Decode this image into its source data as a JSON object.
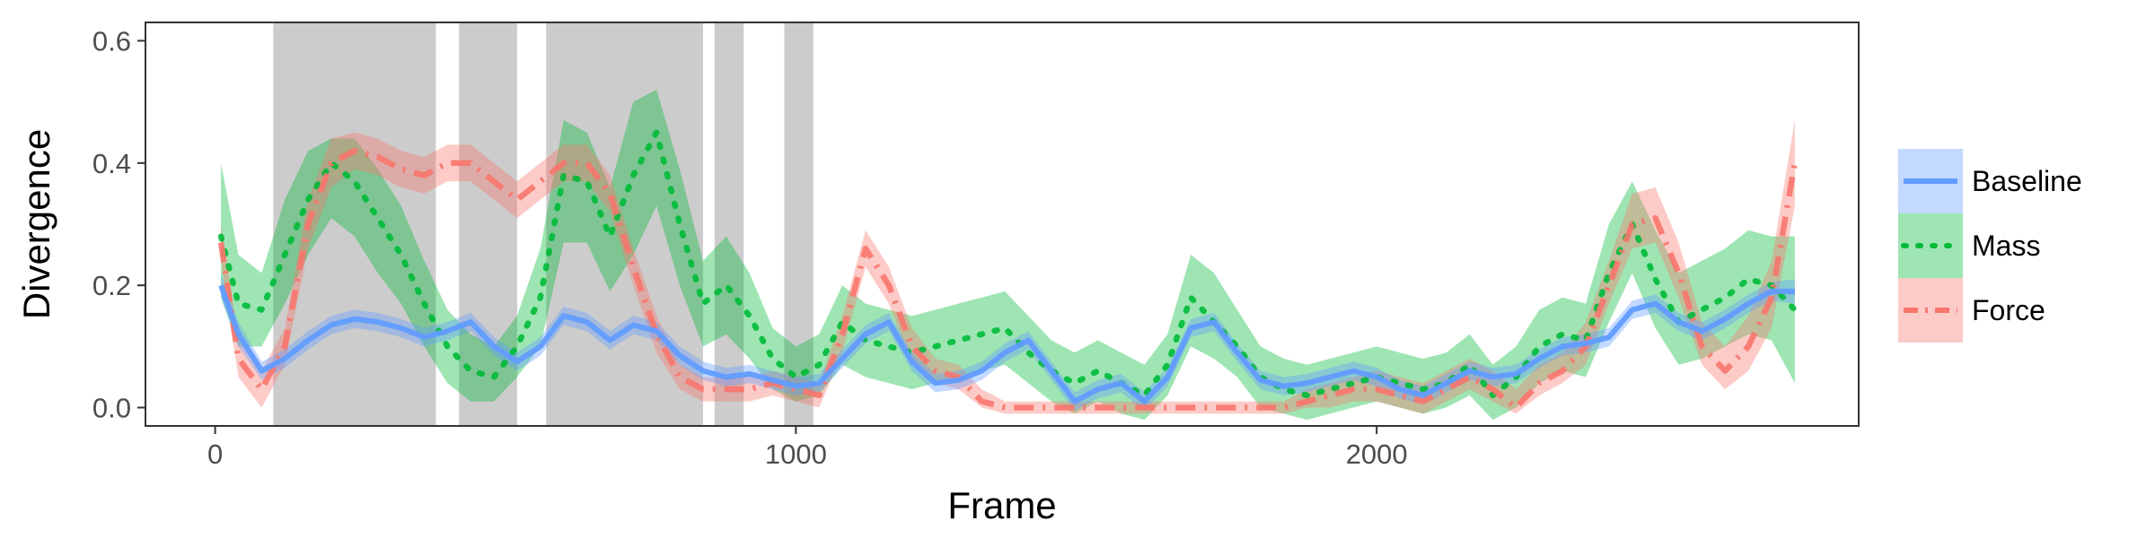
{
  "chart_data": {
    "type": "line",
    "title": "",
    "xlabel": "Frame",
    "ylabel": "Divergence",
    "xlim": [
      -120,
      2830
    ],
    "ylim": [
      -0.03,
      0.63
    ],
    "x_ticks": [
      0,
      1000,
      2000
    ],
    "x_tick_labels": [
      "0",
      "1000",
      "2000"
    ],
    "y_ticks": [
      0.0,
      0.2,
      0.4,
      0.6
    ],
    "y_tick_labels": [
      "0.0",
      "0.2",
      "0.4",
      "0.6"
    ],
    "grid": false,
    "legend_position": "right",
    "shaded_regions": [
      [
        100,
        380
      ],
      [
        420,
        520
      ],
      [
        570,
        840
      ],
      [
        860,
        910
      ],
      [
        980,
        1030
      ]
    ],
    "shaded_color": "#cccccc",
    "series": [
      {
        "name": "Baseline",
        "color": "#619CFF",
        "style": "solid",
        "x": [
          10,
          40,
          80,
          120,
          160,
          200,
          240,
          280,
          320,
          360,
          400,
          440,
          480,
          520,
          560,
          600,
          640,
          680,
          720,
          760,
          800,
          840,
          880,
          920,
          960,
          1000,
          1040,
          1080,
          1120,
          1160,
          1200,
          1240,
          1280,
          1320,
          1360,
          1400,
          1440,
          1480,
          1520,
          1560,
          1600,
          1640,
          1680,
          1720,
          1760,
          1800,
          1840,
          1880,
          1920,
          1960,
          2000,
          2040,
          2080,
          2120,
          2160,
          2200,
          2240,
          2280,
          2320,
          2360,
          2400,
          2440,
          2480,
          2520,
          2560,
          2600,
          2640,
          2680,
          2720
        ],
        "y": [
          0.2,
          0.12,
          0.06,
          0.08,
          0.11,
          0.135,
          0.145,
          0.14,
          0.13,
          0.115,
          0.125,
          0.14,
          0.1,
          0.075,
          0.1,
          0.15,
          0.14,
          0.11,
          0.135,
          0.125,
          0.085,
          0.06,
          0.05,
          0.055,
          0.045,
          0.035,
          0.04,
          0.08,
          0.12,
          0.14,
          0.075,
          0.04,
          0.045,
          0.06,
          0.09,
          0.11,
          0.06,
          0.01,
          0.03,
          0.04,
          0.01,
          0.05,
          0.13,
          0.14,
          0.09,
          0.045,
          0.035,
          0.04,
          0.05,
          0.06,
          0.05,
          0.03,
          0.02,
          0.04,
          0.06,
          0.05,
          0.055,
          0.08,
          0.1,
          0.105,
          0.115,
          0.16,
          0.17,
          0.14,
          0.125,
          0.145,
          0.17,
          0.19,
          0.19
        ],
        "lower": [
          0.18,
          0.1,
          0.045,
          0.065,
          0.095,
          0.12,
          0.13,
          0.125,
          0.115,
          0.1,
          0.11,
          0.125,
          0.085,
          0.06,
          0.085,
          0.135,
          0.125,
          0.095,
          0.12,
          0.11,
          0.07,
          0.045,
          0.035,
          0.04,
          0.03,
          0.02,
          0.025,
          0.065,
          0.105,
          0.125,
          0.06,
          0.025,
          0.03,
          0.045,
          0.075,
          0.095,
          0.045,
          -0.005,
          0.015,
          0.025,
          -0.005,
          0.035,
          0.115,
          0.125,
          0.075,
          0.03,
          0.02,
          0.025,
          0.035,
          0.045,
          0.035,
          0.015,
          0.005,
          0.025,
          0.045,
          0.035,
          0.04,
          0.065,
          0.085,
          0.09,
          0.1,
          0.145,
          0.155,
          0.125,
          0.11,
          0.13,
          0.155,
          0.175,
          0.17
        ],
        "upper": [
          0.22,
          0.14,
          0.075,
          0.095,
          0.125,
          0.15,
          0.16,
          0.155,
          0.145,
          0.13,
          0.14,
          0.155,
          0.115,
          0.09,
          0.115,
          0.165,
          0.155,
          0.125,
          0.15,
          0.14,
          0.1,
          0.075,
          0.065,
          0.07,
          0.06,
          0.05,
          0.055,
          0.095,
          0.135,
          0.155,
          0.09,
          0.055,
          0.06,
          0.075,
          0.105,
          0.125,
          0.075,
          0.025,
          0.045,
          0.055,
          0.025,
          0.065,
          0.145,
          0.155,
          0.105,
          0.06,
          0.05,
          0.055,
          0.065,
          0.075,
          0.065,
          0.045,
          0.035,
          0.055,
          0.075,
          0.065,
          0.07,
          0.095,
          0.115,
          0.12,
          0.13,
          0.175,
          0.185,
          0.155,
          0.14,
          0.16,
          0.185,
          0.205,
          0.21
        ]
      },
      {
        "name": "Mass",
        "color": "#00BA38",
        "style": "dotted",
        "x": [
          10,
          40,
          80,
          120,
          160,
          200,
          240,
          280,
          320,
          360,
          400,
          440,
          480,
          520,
          560,
          600,
          640,
          680,
          720,
          760,
          800,
          840,
          880,
          920,
          960,
          1000,
          1040,
          1080,
          1120,
          1160,
          1200,
          1240,
          1280,
          1320,
          1360,
          1400,
          1440,
          1480,
          1520,
          1560,
          1600,
          1640,
          1680,
          1720,
          1760,
          1800,
          1840,
          1880,
          1920,
          1960,
          2000,
          2040,
          2080,
          2120,
          2160,
          2200,
          2240,
          2280,
          2320,
          2360,
          2400,
          2440,
          2480,
          2520,
          2560,
          2600,
          2640,
          2680,
          2720
        ],
        "y": [
          0.28,
          0.17,
          0.16,
          0.25,
          0.34,
          0.4,
          0.37,
          0.31,
          0.25,
          0.17,
          0.1,
          0.06,
          0.05,
          0.1,
          0.18,
          0.38,
          0.37,
          0.28,
          0.38,
          0.45,
          0.3,
          0.17,
          0.2,
          0.15,
          0.08,
          0.05,
          0.07,
          0.14,
          0.11,
          0.1,
          0.09,
          0.1,
          0.11,
          0.12,
          0.13,
          0.09,
          0.06,
          0.04,
          0.06,
          0.04,
          0.02,
          0.07,
          0.18,
          0.14,
          0.1,
          0.05,
          0.03,
          0.02,
          0.03,
          0.04,
          0.05,
          0.04,
          0.03,
          0.04,
          0.07,
          0.02,
          0.05,
          0.1,
          0.12,
          0.11,
          0.22,
          0.3,
          0.21,
          0.14,
          0.16,
          0.18,
          0.21,
          0.2,
          0.16
        ],
        "lower": [
          0.18,
          0.1,
          0.1,
          0.17,
          0.25,
          0.31,
          0.28,
          0.22,
          0.17,
          0.1,
          0.04,
          0.01,
          0.01,
          0.05,
          0.1,
          0.27,
          0.27,
          0.19,
          0.25,
          0.33,
          0.2,
          0.1,
          0.12,
          0.08,
          0.03,
          0.01,
          0.02,
          0.07,
          0.05,
          0.04,
          0.03,
          0.04,
          0.05,
          0.06,
          0.07,
          0.04,
          0.01,
          -0.01,
          0.01,
          -0.01,
          -0.02,
          0.02,
          0.1,
          0.08,
          0.05,
          0.0,
          -0.01,
          -0.02,
          -0.01,
          0.0,
          0.01,
          0.0,
          -0.01,
          0.0,
          0.02,
          -0.02,
          0.0,
          0.04,
          0.06,
          0.05,
          0.14,
          0.22,
          0.13,
          0.07,
          0.08,
          0.1,
          0.12,
          0.11,
          0.04
        ],
        "upper": [
          0.4,
          0.25,
          0.22,
          0.34,
          0.42,
          0.44,
          0.44,
          0.39,
          0.33,
          0.24,
          0.16,
          0.12,
          0.1,
          0.15,
          0.26,
          0.47,
          0.45,
          0.36,
          0.5,
          0.52,
          0.39,
          0.24,
          0.28,
          0.22,
          0.13,
          0.1,
          0.12,
          0.2,
          0.17,
          0.16,
          0.15,
          0.16,
          0.17,
          0.18,
          0.19,
          0.15,
          0.11,
          0.09,
          0.11,
          0.09,
          0.07,
          0.12,
          0.25,
          0.22,
          0.16,
          0.1,
          0.08,
          0.07,
          0.08,
          0.09,
          0.1,
          0.09,
          0.08,
          0.09,
          0.12,
          0.07,
          0.1,
          0.16,
          0.18,
          0.17,
          0.3,
          0.37,
          0.29,
          0.22,
          0.24,
          0.26,
          0.29,
          0.28,
          0.28
        ]
      },
      {
        "name": "Force",
        "color": "#F8766D",
        "style": "dashdot",
        "x": [
          10,
          40,
          80,
          120,
          160,
          200,
          240,
          280,
          320,
          360,
          400,
          440,
          480,
          520,
          560,
          600,
          640,
          680,
          720,
          760,
          800,
          840,
          880,
          920,
          960,
          1000,
          1040,
          1080,
          1120,
          1160,
          1200,
          1240,
          1280,
          1320,
          1360,
          1400,
          1440,
          1480,
          1520,
          1560,
          1600,
          1640,
          1680,
          1720,
          1760,
          1800,
          1840,
          1880,
          1920,
          1960,
          2000,
          2040,
          2080,
          2120,
          2160,
          2200,
          2240,
          2280,
          2320,
          2360,
          2400,
          2440,
          2480,
          2520,
          2560,
          2600,
          2640,
          2680,
          2720
        ],
        "y": [
          0.27,
          0.08,
          0.03,
          0.1,
          0.3,
          0.4,
          0.42,
          0.41,
          0.39,
          0.38,
          0.4,
          0.4,
          0.37,
          0.34,
          0.37,
          0.4,
          0.4,
          0.35,
          0.23,
          0.12,
          0.05,
          0.03,
          0.03,
          0.03,
          0.04,
          0.03,
          0.02,
          0.12,
          0.26,
          0.2,
          0.1,
          0.06,
          0.05,
          0.01,
          0.0,
          0.0,
          0.0,
          0.0,
          0.0,
          0.0,
          0.0,
          0.0,
          0.0,
          0.0,
          0.0,
          0.0,
          0.0,
          0.01,
          0.02,
          0.03,
          0.03,
          0.02,
          0.01,
          0.03,
          0.05,
          0.03,
          0.0,
          0.04,
          0.06,
          0.1,
          0.2,
          0.3,
          0.31,
          0.22,
          0.1,
          0.06,
          0.1,
          0.18,
          0.4
        ],
        "lower": [
          0.24,
          0.05,
          0.0,
          0.07,
          0.26,
          0.36,
          0.39,
          0.38,
          0.36,
          0.35,
          0.37,
          0.37,
          0.34,
          0.31,
          0.34,
          0.37,
          0.37,
          0.32,
          0.2,
          0.09,
          0.03,
          0.01,
          0.01,
          0.01,
          0.02,
          0.01,
          0.0,
          0.09,
          0.23,
          0.17,
          0.07,
          0.04,
          0.03,
          0.0,
          -0.01,
          -0.01,
          -0.01,
          -0.01,
          -0.01,
          -0.01,
          -0.01,
          -0.01,
          -0.01,
          -0.01,
          -0.01,
          -0.01,
          -0.01,
          0.0,
          0.0,
          0.01,
          0.01,
          0.0,
          -0.01,
          0.01,
          0.03,
          0.01,
          -0.01,
          0.02,
          0.04,
          0.07,
          0.17,
          0.26,
          0.27,
          0.18,
          0.07,
          0.03,
          0.06,
          0.13,
          0.33
        ],
        "upper": [
          0.3,
          0.11,
          0.06,
          0.13,
          0.34,
          0.44,
          0.45,
          0.44,
          0.42,
          0.41,
          0.43,
          0.43,
          0.4,
          0.37,
          0.4,
          0.43,
          0.43,
          0.38,
          0.26,
          0.15,
          0.07,
          0.05,
          0.05,
          0.05,
          0.06,
          0.05,
          0.04,
          0.15,
          0.29,
          0.23,
          0.13,
          0.08,
          0.07,
          0.03,
          0.01,
          0.01,
          0.01,
          0.01,
          0.01,
          0.01,
          0.01,
          0.01,
          0.01,
          0.01,
          0.01,
          0.01,
          0.01,
          0.03,
          0.04,
          0.05,
          0.06,
          0.05,
          0.04,
          0.06,
          0.08,
          0.06,
          0.03,
          0.07,
          0.09,
          0.14,
          0.24,
          0.35,
          0.36,
          0.27,
          0.14,
          0.1,
          0.15,
          0.24,
          0.47
        ]
      }
    ]
  }
}
